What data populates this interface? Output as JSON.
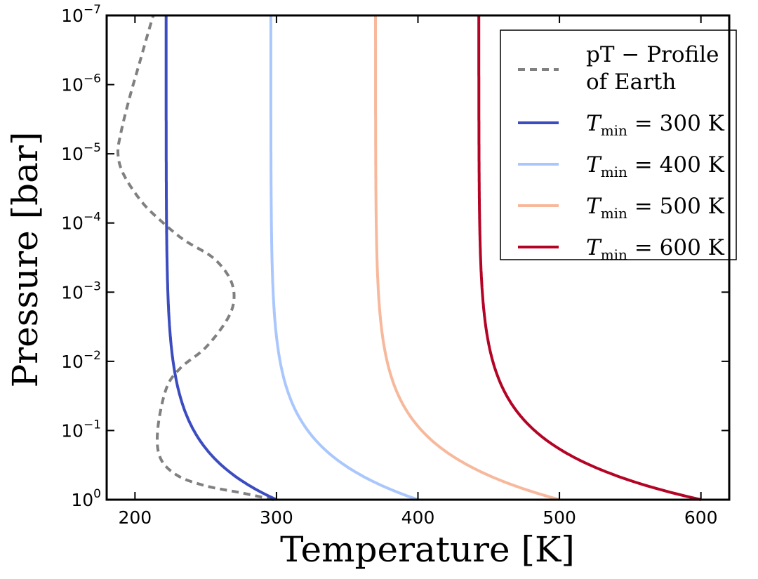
{
  "chart_data": {
    "type": "line",
    "xlabel": "Temperature [K]",
    "ylabel": "Pressure [bar]",
    "xlim": [
      180,
      620
    ],
    "ylim_log10": [
      0,
      -7
    ],
    "yscale": "log",
    "y_inverted": true,
    "x_ticks": [
      200,
      300,
      400,
      500,
      600
    ],
    "x_tick_labels": [
      "200",
      "300",
      "400",
      "500",
      "600"
    ],
    "y_ticks_log10": [
      -7,
      -6,
      -5,
      -4,
      -3,
      -2,
      -1,
      0
    ],
    "y_tick_labels": [
      {
        "base": "10",
        "exp": "−7"
      },
      {
        "base": "10",
        "exp": "−6"
      },
      {
        "base": "10",
        "exp": "−5"
      },
      {
        "base": "10",
        "exp": "−4"
      },
      {
        "base": "10",
        "exp": "−3"
      },
      {
        "base": "10",
        "exp": "−2"
      },
      {
        "base": "10",
        "exp": "−1"
      },
      {
        "base": "10",
        "exp": "0"
      }
    ],
    "legend_position": "top-right",
    "earth_profile": {
      "name_line1": "pT − Profile",
      "name_line2": "of Earth",
      "color": "#808080",
      "dash": true,
      "points": [
        [
          298,
          0
        ],
        [
          275,
          -0.1
        ],
        [
          250,
          -0.2
        ],
        [
          230,
          -0.35
        ],
        [
          218,
          -0.6
        ],
        [
          216,
          -1.0
        ],
        [
          222,
          -1.6
        ],
        [
          232,
          -1.9
        ],
        [
          250,
          -2.2
        ],
        [
          265,
          -2.6
        ],
        [
          270,
          -2.9
        ],
        [
          267,
          -3.2
        ],
        [
          255,
          -3.5
        ],
        [
          235,
          -3.75
        ],
        [
          220,
          -4.0
        ],
        [
          205,
          -4.3
        ],
        [
          192,
          -4.7
        ],
        [
          188,
          -5.0
        ],
        [
          190,
          -5.3
        ],
        [
          196,
          -5.8
        ],
        [
          203,
          -6.3
        ],
        [
          210,
          -6.8
        ],
        [
          213,
          -7.0
        ]
      ]
    },
    "series": [
      {
        "name_prefix": "T",
        "name_sub": "min",
        "name_suffix": " = 300 K",
        "t_surface": 300,
        "t_top": 222,
        "color": "#3b4cc0"
      },
      {
        "name_prefix": "T",
        "name_sub": "min",
        "name_suffix": " = 400 K",
        "t_surface": 400,
        "t_top": 296,
        "color": "#aac7fd"
      },
      {
        "name_prefix": "T",
        "name_sub": "min",
        "name_suffix": " = 500 K",
        "t_surface": 500,
        "t_top": 370,
        "color": "#f7b89c"
      },
      {
        "name_prefix": "T",
        "name_sub": "min",
        "name_suffix": " = 600 K",
        "t_surface": 600,
        "t_top": 443,
        "color": "#b40426"
      }
    ]
  }
}
